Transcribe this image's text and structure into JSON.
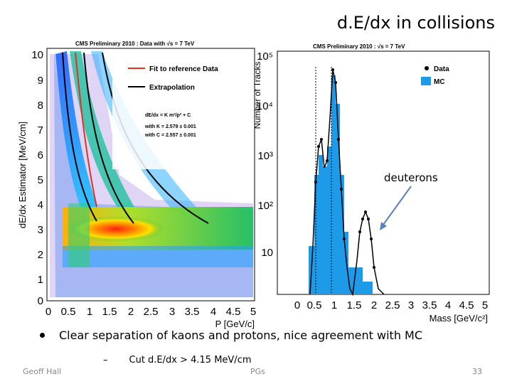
{
  "slide": {
    "title": "d.E/dx in collisions",
    "bullet": "Clear separation of kaons and protons, nice agreement with MC",
    "sub_dash": "–",
    "sub_bullet": "Cut d.E/dx > 4.15 MeV/cm",
    "footer_left": "Geoff Hall",
    "footer_mid": "PGs",
    "page_number": "33",
    "annotation": "deuterons"
  },
  "left_plot": {
    "header": "CMS Preliminary 2010 : Data with √s = 7 TeV",
    "xlabel": "P [GeV/c]",
    "ylabel": "dE/dx Estimator [MeV/cm]",
    "legend": [
      {
        "label": "Fit to reference Data",
        "color": "#e33020"
      },
      {
        "label": "Extrapolation",
        "color": "#000000"
      }
    ],
    "formula_lines": [
      "dE/dx = K m²/p² + C",
      "with K = 2.579 ± 0.001",
      "with C = 2.557 ± 0.001"
    ],
    "x_ticks": [
      "0",
      "0.5",
      "1",
      "1.5",
      "2",
      "2.5",
      "3",
      "3.5",
      "4",
      "4.5",
      "5"
    ],
    "y_ticks": [
      "0",
      "1",
      "2",
      "3",
      "4",
      "5",
      "6",
      "7",
      "8",
      "9",
      "10"
    ]
  },
  "right_plot": {
    "header": "CMS Preliminary 2010 : √s = 7 TeV",
    "xlabel": "Mass [GeV/c²]",
    "ylabel": "Number of Tracks",
    "legend": [
      {
        "label": "Data",
        "color": "#000000"
      },
      {
        "label": "MC",
        "color": "#1e9be8"
      }
    ],
    "x_ticks": [
      "0",
      "0.5",
      "1",
      "1.5",
      "2",
      "2.5",
      "3",
      "3.5",
      "4",
      "4.5",
      "5"
    ],
    "y_ticks": [
      "10",
      "10²",
      "10³",
      "10⁴",
      "10⁵"
    ]
  }
}
